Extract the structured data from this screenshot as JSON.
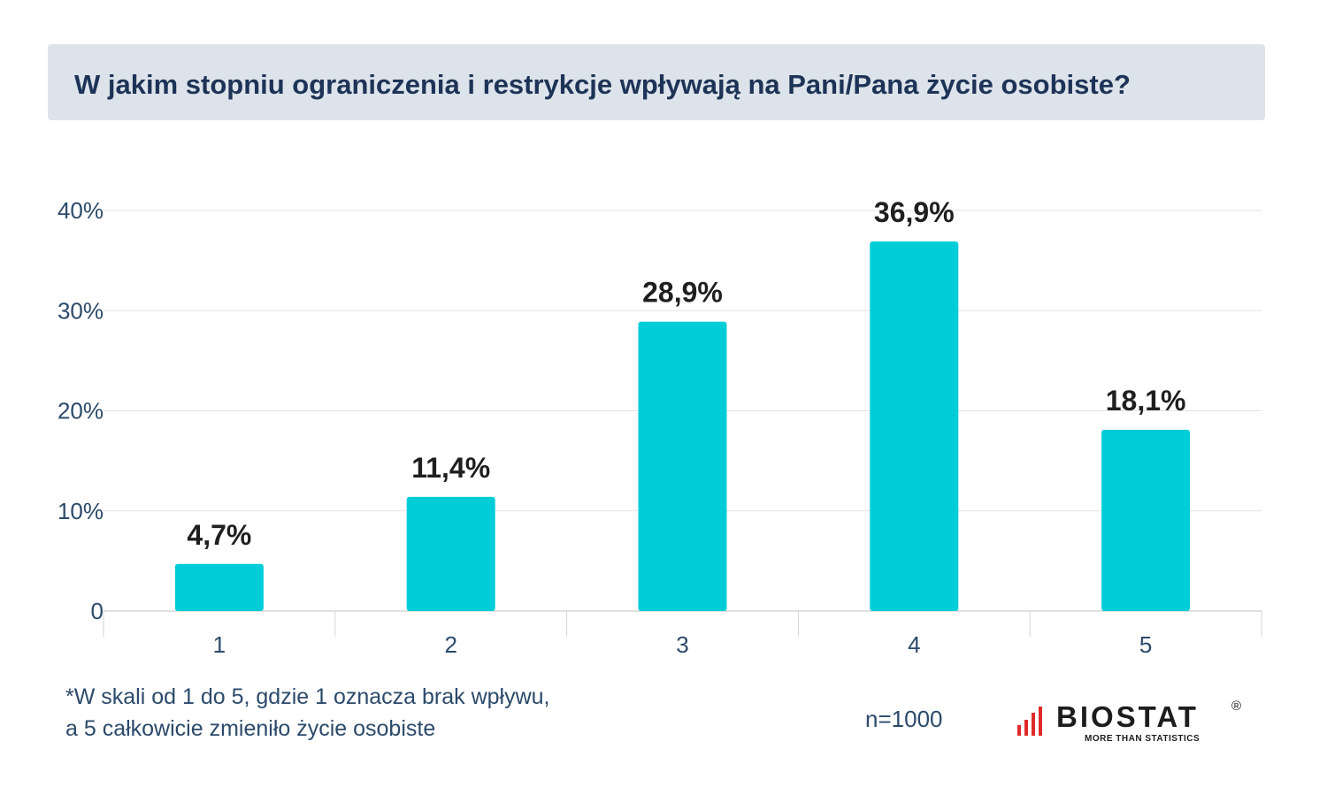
{
  "title": "W jakim stopniu ograniczenia i restrykcje wpływają na Pani/Pana życie osobiste?",
  "chart_data": {
    "type": "bar",
    "categories": [
      "1",
      "2",
      "3",
      "4",
      "5"
    ],
    "values": [
      4.7,
      11.4,
      28.9,
      36.9,
      18.1
    ],
    "value_labels": [
      "4,7%",
      "11,4%",
      "28,9%",
      "36,9%",
      "18,1%"
    ],
    "yticks": [
      0,
      10,
      20,
      30,
      40
    ],
    "ytick_labels": [
      "0",
      "10%",
      "20%",
      "30%",
      "40%"
    ],
    "ylim": [
      0,
      40
    ],
    "grid": true,
    "bar_color": "#00cdd8"
  },
  "footnote": {
    "line1": "*W skali od 1 do 5, gdzie 1 oznacza brak wpływu,",
    "line2": "a 5 całkowicie zmieniło życie osobiste"
  },
  "sample_size": "n=1000",
  "logo": {
    "name": "BIOSTAT",
    "registered": "®",
    "tagline": "MORE THAN STATISTICS",
    "bar_color": "#e02a2a"
  }
}
